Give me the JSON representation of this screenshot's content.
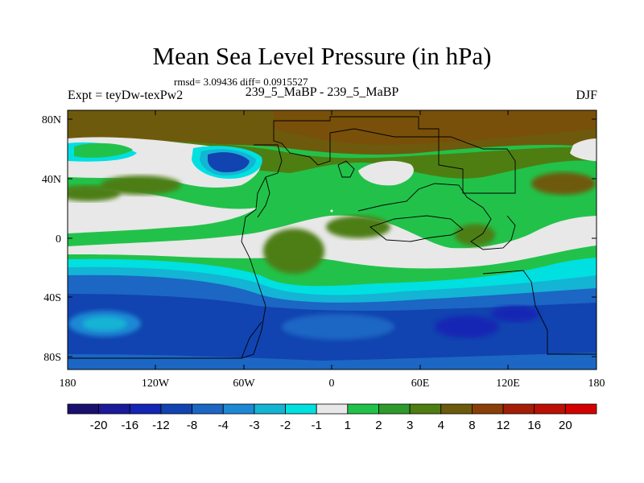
{
  "title": "Mean Sea Level Pressure (in hPa)",
  "stats": "rmsd= 3.09436 diff= 0.0915527",
  "experiment": "Expt = teyDw-texPw2",
  "comparison": "239_5_MaBP - 239_5_MaBP",
  "season": "DJF",
  "lat_ticks": [
    "80N",
    "40N",
    "0",
    "40S",
    "80S"
  ],
  "lon_ticks": [
    "180",
    "120W",
    "60W",
    "0",
    "60E",
    "120E",
    "180"
  ],
  "colorbar": {
    "labels": [
      "-20",
      "-16",
      "-12",
      "-8",
      "-4",
      "-3",
      "-2",
      "-1",
      "1",
      "2",
      "3",
      "4",
      "8",
      "12",
      "16",
      "20"
    ],
    "colors": [
      "#1b0f6e",
      "#1a1a9a",
      "#1326b4",
      "#1144b0",
      "#1c66c4",
      "#1e88d4",
      "#14b4d4",
      "#00e0e0",
      "#e8e8e8",
      "#22c24a",
      "#2e9a2c",
      "#4e7e12",
      "#6e5a0c",
      "#8c3e08",
      "#a41e06",
      "#bc1004",
      "#d40000"
    ]
  }
}
